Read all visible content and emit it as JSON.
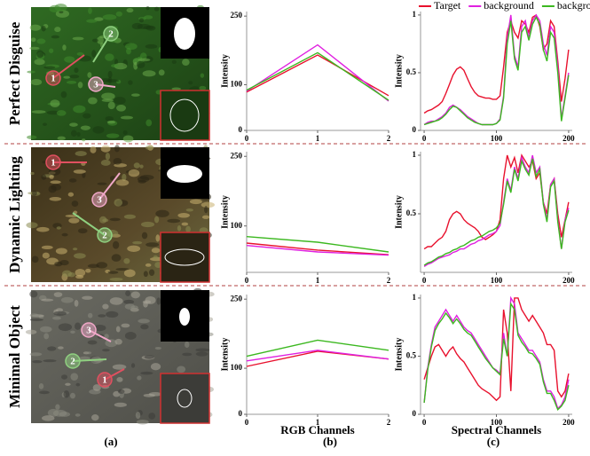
{
  "rows": [
    {
      "label": "Perfect Disguise",
      "markers": [
        "1",
        "2",
        "3"
      ]
    },
    {
      "label": "Dynamic Lighting",
      "markers": [
        "1",
        "2",
        "3"
      ]
    },
    {
      "label": "Minimal Object",
      "markers": [
        "1",
        "2",
        "3"
      ]
    }
  ],
  "panel_labels": [
    "(a)",
    "(b)",
    "(c)"
  ],
  "chart_data": [
    {
      "type": "line",
      "ylabel": "Intensity",
      "x": [
        0,
        1,
        2
      ],
      "xlim": [
        0,
        2
      ],
      "xticks": [
        0,
        1,
        2
      ],
      "ylim": [
        0,
        260
      ],
      "yticks": [
        0,
        100,
        250
      ],
      "series": [
        {
          "name": "Target",
          "color": "#e8112d",
          "values": [
            84,
            165,
            76
          ]
        },
        {
          "name": "background",
          "color": "#e020e0",
          "values": [
            86,
            187,
            64
          ]
        },
        {
          "name": "background",
          "color": "#3cb820",
          "values": [
            88,
            170,
            66
          ]
        }
      ]
    },
    {
      "type": "line",
      "ylabel": "Intensity",
      "x": [
        0,
        5,
        10,
        15,
        20,
        25,
        30,
        35,
        40,
        45,
        50,
        55,
        60,
        65,
        70,
        75,
        80,
        85,
        90,
        95,
        100,
        105,
        110,
        115,
        120,
        125,
        130,
        135,
        140,
        145,
        150,
        155,
        160,
        165,
        170,
        175,
        180,
        185,
        190,
        195,
        200
      ],
      "xlim": [
        -5,
        205
      ],
      "xticks": [
        0,
        100,
        200
      ],
      "ylim": [
        0,
        1.03
      ],
      "yticks": [
        0,
        0.5,
        1
      ],
      "series": [
        {
          "color": "#e8112d",
          "values": [
            0.15,
            0.17,
            0.18,
            0.2,
            0.22,
            0.25,
            0.32,
            0.4,
            0.48,
            0.53,
            0.55,
            0.52,
            0.45,
            0.38,
            0.33,
            0.3,
            0.29,
            0.28,
            0.28,
            0.27,
            0.27,
            0.3,
            0.55,
            0.85,
            0.95,
            0.85,
            0.8,
            0.95,
            0.92,
            0.85,
            0.98,
            1.0,
            0.9,
            0.7,
            0.75,
            0.95,
            0.9,
            0.6,
            0.25,
            0.45,
            0.7
          ]
        },
        {
          "color": "#e020e0",
          "values": [
            0.05,
            0.07,
            0.08,
            0.08,
            0.1,
            0.12,
            0.15,
            0.2,
            0.22,
            0.2,
            0.18,
            0.15,
            0.12,
            0.1,
            0.08,
            0.06,
            0.05,
            0.05,
            0.05,
            0.05,
            0.06,
            0.1,
            0.3,
            0.8,
            1.0,
            0.65,
            0.55,
            0.9,
            0.95,
            0.8,
            0.95,
            1.0,
            0.95,
            0.75,
            0.65,
            0.9,
            0.85,
            0.55,
            0.1,
            0.3,
            0.5
          ]
        },
        {
          "color": "#3cb820",
          "values": [
            0.05,
            0.06,
            0.07,
            0.08,
            0.09,
            0.11,
            0.14,
            0.18,
            0.21,
            0.2,
            0.17,
            0.14,
            0.11,
            0.09,
            0.07,
            0.06,
            0.05,
            0.05,
            0.05,
            0.05,
            0.06,
            0.09,
            0.28,
            0.75,
            0.95,
            0.62,
            0.52,
            0.85,
            0.9,
            0.78,
            0.92,
            0.98,
            0.92,
            0.7,
            0.6,
            0.85,
            0.8,
            0.5,
            0.08,
            0.28,
            0.48
          ]
        }
      ]
    },
    {
      "type": "line",
      "ylabel": "Intensity",
      "x": [
        0,
        1,
        2
      ],
      "xlim": [
        0,
        2
      ],
      "xticks": [
        0,
        1,
        2
      ],
      "ylim": [
        0,
        260
      ],
      "yticks": [
        100,
        250
      ],
      "series": [
        {
          "color": "#e8112d",
          "values": [
            63,
            48,
            38
          ]
        },
        {
          "color": "#e020e0",
          "values": [
            58,
            44,
            37
          ]
        },
        {
          "color": "#3cb820",
          "values": [
            77,
            65,
            44
          ]
        }
      ]
    },
    {
      "type": "line",
      "ylabel": "Intensity",
      "x": [
        0,
        5,
        10,
        15,
        20,
        25,
        30,
        35,
        40,
        45,
        50,
        55,
        60,
        65,
        70,
        75,
        80,
        85,
        90,
        95,
        100,
        105,
        110,
        115,
        120,
        125,
        130,
        135,
        140,
        145,
        150,
        155,
        160,
        165,
        170,
        175,
        180,
        185,
        190,
        195,
        200
      ],
      "xlim": [
        -5,
        205
      ],
      "xticks": [
        0,
        100,
        200
      ],
      "ylim": [
        0,
        1.03
      ],
      "yticks": [
        0.5,
        1
      ],
      "series": [
        {
          "color": "#e8112d",
          "values": [
            0.2,
            0.22,
            0.22,
            0.25,
            0.28,
            0.3,
            0.35,
            0.45,
            0.5,
            0.52,
            0.5,
            0.45,
            0.42,
            0.4,
            0.38,
            0.35,
            0.3,
            0.28,
            0.3,
            0.32,
            0.35,
            0.45,
            0.8,
            1.0,
            0.9,
            0.98,
            0.85,
            1.0,
            0.95,
            0.9,
            0.95,
            0.8,
            0.85,
            0.6,
            0.5,
            0.75,
            0.8,
            0.5,
            0.3,
            0.45,
            0.6
          ]
        },
        {
          "color": "#e020e0",
          "values": [
            0.05,
            0.07,
            0.08,
            0.1,
            0.12,
            0.13,
            0.14,
            0.15,
            0.17,
            0.18,
            0.2,
            0.2,
            0.22,
            0.24,
            0.25,
            0.27,
            0.28,
            0.3,
            0.32,
            0.33,
            0.35,
            0.4,
            0.6,
            0.8,
            0.7,
            0.9,
            0.8,
            0.98,
            0.9,
            0.85,
            1.0,
            0.85,
            0.9,
            0.6,
            0.45,
            0.75,
            0.8,
            0.45,
            0.2,
            0.45,
            0.55
          ]
        },
        {
          "color": "#3cb820",
          "values": [
            0.06,
            0.08,
            0.09,
            0.11,
            0.13,
            0.14,
            0.16,
            0.17,
            0.19,
            0.2,
            0.22,
            0.23,
            0.25,
            0.27,
            0.28,
            0.3,
            0.31,
            0.33,
            0.35,
            0.36,
            0.38,
            0.42,
            0.58,
            0.78,
            0.68,
            0.88,
            0.78,
            0.95,
            0.88,
            0.83,
            0.97,
            0.82,
            0.88,
            0.58,
            0.43,
            0.73,
            0.78,
            0.43,
            0.2,
            0.43,
            0.53
          ]
        }
      ]
    },
    {
      "type": "line",
      "ylabel": "Intensity",
      "xlabel": "RGB Channels",
      "x": [
        0,
        1,
        2
      ],
      "xlim": [
        0,
        2
      ],
      "xticks": [
        0,
        1,
        2
      ],
      "ylim": [
        0,
        260
      ],
      "yticks": [
        0,
        100,
        250
      ],
      "series": [
        {
          "color": "#e8112d",
          "values": [
            104,
            137,
            120
          ]
        },
        {
          "color": "#e020e0",
          "values": [
            116,
            139,
            120
          ]
        },
        {
          "color": "#3cb820",
          "values": [
            126,
            161,
            139
          ]
        }
      ]
    },
    {
      "type": "line",
      "ylabel": "Intensity",
      "xlabel": "Spectral Channels",
      "x": [
        0,
        5,
        10,
        15,
        20,
        25,
        30,
        35,
        40,
        45,
        50,
        55,
        60,
        65,
        70,
        75,
        80,
        85,
        90,
        95,
        100,
        105,
        110,
        115,
        120,
        125,
        130,
        135,
        140,
        145,
        150,
        155,
        160,
        165,
        170,
        175,
        180,
        185,
        190,
        195,
        200
      ],
      "xlim": [
        -5,
        205
      ],
      "xticks": [
        0,
        100,
        200
      ],
      "ylim": [
        0,
        1.03
      ],
      "yticks": [
        0,
        0.5,
        1
      ],
      "series": [
        {
          "color": "#e8112d",
          "values": [
            0.3,
            0.4,
            0.5,
            0.58,
            0.6,
            0.55,
            0.5,
            0.55,
            0.58,
            0.52,
            0.48,
            0.45,
            0.4,
            0.35,
            0.3,
            0.25,
            0.22,
            0.2,
            0.18,
            0.15,
            0.12,
            0.15,
            0.9,
            0.7,
            0.2,
            1.0,
            1.0,
            0.9,
            0.85,
            0.8,
            0.85,
            0.8,
            0.75,
            0.7,
            0.6,
            0.6,
            0.55,
            0.2,
            0.15,
            0.2,
            0.35
          ]
        },
        {
          "color": "#e020e0",
          "values": [
            0.1,
            0.4,
            0.6,
            0.75,
            0.8,
            0.85,
            0.9,
            0.85,
            0.8,
            0.85,
            0.8,
            0.75,
            0.72,
            0.7,
            0.65,
            0.6,
            0.55,
            0.5,
            0.45,
            0.4,
            0.38,
            0.35,
            0.7,
            0.5,
            1.0,
            0.95,
            0.7,
            0.65,
            0.6,
            0.55,
            0.55,
            0.5,
            0.45,
            0.3,
            0.2,
            0.2,
            0.15,
            0.05,
            0.08,
            0.15,
            0.3
          ]
        },
        {
          "color": "#3cb820",
          "values": [
            0.1,
            0.38,
            0.58,
            0.72,
            0.78,
            0.82,
            0.87,
            0.83,
            0.78,
            0.82,
            0.78,
            0.73,
            0.7,
            0.68,
            0.63,
            0.58,
            0.53,
            0.48,
            0.44,
            0.4,
            0.37,
            0.34,
            0.65,
            0.5,
            0.95,
            0.9,
            0.68,
            0.62,
            0.58,
            0.53,
            0.52,
            0.48,
            0.43,
            0.28,
            0.18,
            0.18,
            0.12,
            0.04,
            0.07,
            0.12,
            0.25
          ]
        }
      ]
    }
  ]
}
